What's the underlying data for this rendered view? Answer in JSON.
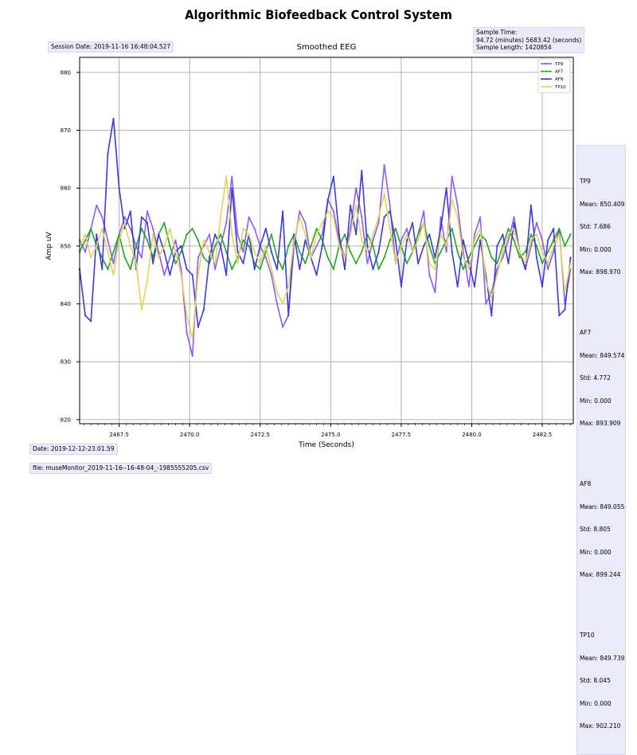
{
  "header": {
    "title": "Algorithmic Biofeedback Control System",
    "session_date": "Session Date: 2019-11-16 16:48:04.527",
    "sample_time_line1": "Sample Time:",
    "sample_time_line2": "94.72 (minutes) 5683.42 (seconds)",
    "sample_length": "Sample Length: 1420854"
  },
  "footer": {
    "date": "Date: 2019-12-12-23.01.59",
    "file": "file: museMonitor_2019-11-16--16-48-04_-1985555205.csv"
  },
  "stats": [
    {
      "name": "TP9",
      "mean": "Mean: 850.409",
      "std": "Std: 7.686",
      "min": "Min: 0.000",
      "max": "Max: 898.970"
    },
    {
      "name": "AF7",
      "mean": "Mean: 849.574",
      "std": "Std: 4.772",
      "min": "Min: 0.000",
      "max": "Max: 893.909"
    },
    {
      "name": "AF8",
      "mean": "Mean: 849.055",
      "std": "Std: 8.805",
      "min": "Min: 0.000",
      "max": "Max: 899.244"
    },
    {
      "name": "TP10",
      "mean": "Mean: 849.739",
      "std": "Std: 8.045",
      "min": "Min: 0.000",
      "max": "Max: 902.210"
    }
  ],
  "chart_data": {
    "type": "line",
    "title": "Smoothed EEG",
    "xlabel": "Time (Seconds)",
    "ylabel": "Amp uV",
    "xlim": [
      2466.1,
      2483.6
    ],
    "ylim": [
      819.3,
      882.6
    ],
    "x_ticks": [
      2467.5,
      2470.0,
      2472.5,
      2475.0,
      2477.5,
      2480.0,
      2482.5
    ],
    "x_tick_labels": [
      "2467.5",
      "2470.0",
      "2472.5",
      "2475.0",
      "2477.5",
      "2480.0",
      "2482.5"
    ],
    "y_ticks": [
      820,
      830,
      840,
      850,
      860,
      870,
      880
    ],
    "y_tick_labels": [
      "820",
      "830",
      "840",
      "850",
      "860",
      "870",
      "880"
    ],
    "grid": true,
    "legend_position": "top-right",
    "series": [
      {
        "name": "TP9",
        "color": "#8b5cf6",
        "x": [
          2466.1,
          2466.3,
          2466.5,
          2466.7,
          2466.9,
          2467.1,
          2467.3,
          2467.5,
          2467.7,
          2467.9,
          2468.1,
          2468.3,
          2468.5,
          2468.7,
          2468.9,
          2469.1,
          2469.3,
          2469.5,
          2469.7,
          2469.9,
          2470.1,
          2470.3,
          2470.5,
          2470.7,
          2470.9,
          2471.1,
          2471.3,
          2471.5,
          2471.7,
          2471.9,
          2472.1,
          2472.3,
          2472.5,
          2472.7,
          2472.9,
          2473.1,
          2473.3,
          2473.5,
          2473.7,
          2473.9,
          2474.1,
          2474.3,
          2474.5,
          2474.7,
          2474.9,
          2475.1,
          2475.3,
          2475.5,
          2475.7,
          2475.9,
          2476.1,
          2476.3,
          2476.5,
          2476.7,
          2476.9,
          2477.1,
          2477.3,
          2477.5,
          2477.7,
          2477.9,
          2478.1,
          2478.3,
          2478.5,
          2478.7,
          2478.9,
          2479.1,
          2479.3,
          2479.5,
          2479.7,
          2479.9,
          2480.1,
          2480.3,
          2480.5,
          2480.7,
          2480.9,
          2481.1,
          2481.3,
          2481.5,
          2481.7,
          2481.9,
          2482.1,
          2482.3,
          2482.5,
          2482.7,
          2482.9,
          2483.1,
          2483.3,
          2483.5
        ],
        "y": [
          851,
          849,
          853,
          857,
          855,
          851,
          847,
          852,
          855,
          853,
          850,
          848,
          856,
          853,
          849,
          845,
          848,
          851,
          846,
          835,
          831,
          848,
          850,
          852,
          846,
          850,
          854,
          862,
          852,
          849,
          855,
          853,
          850,
          848,
          845,
          840,
          836,
          838,
          850,
          856,
          854,
          848,
          850,
          852,
          858,
          856,
          851,
          848,
          853,
          860,
          855,
          847,
          851,
          854,
          864,
          857,
          847,
          851,
          853,
          849,
          852,
          856,
          845,
          842,
          855,
          849,
          862,
          857,
          849,
          843,
          852,
          855,
          840,
          842,
          846,
          848,
          851,
          855,
          849,
          846,
          850,
          854,
          851,
          846,
          849,
          853,
          840,
          846
        ]
      },
      {
        "name": "AF7",
        "color": "#22a722",
        "x": [
          2466.1,
          2466.3,
          2466.5,
          2466.7,
          2466.9,
          2467.1,
          2467.3,
          2467.5,
          2467.7,
          2467.9,
          2468.1,
          2468.3,
          2468.5,
          2468.7,
          2468.9,
          2469.1,
          2469.3,
          2469.5,
          2469.7,
          2469.9,
          2470.1,
          2470.3,
          2470.5,
          2470.7,
          2470.9,
          2471.1,
          2471.3,
          2471.5,
          2471.7,
          2471.9,
          2472.1,
          2472.3,
          2472.5,
          2472.7,
          2472.9,
          2473.1,
          2473.3,
          2473.5,
          2473.7,
          2473.9,
          2474.1,
          2474.3,
          2474.5,
          2474.7,
          2474.9,
          2475.1,
          2475.3,
          2475.5,
          2475.7,
          2475.9,
          2476.1,
          2476.3,
          2476.5,
          2476.7,
          2476.9,
          2477.1,
          2477.3,
          2477.5,
          2477.7,
          2477.9,
          2478.1,
          2478.3,
          2478.5,
          2478.7,
          2478.9,
          2479.1,
          2479.3,
          2479.5,
          2479.7,
          2479.9,
          2480.1,
          2480.3,
          2480.5,
          2480.7,
          2480.9,
          2481.1,
          2481.3,
          2481.5,
          2481.7,
          2481.9,
          2482.1,
          2482.3,
          2482.5,
          2482.7,
          2482.9,
          2483.1,
          2483.3,
          2483.5
        ],
        "y": [
          849,
          851,
          853,
          850,
          848,
          846,
          849,
          852,
          848,
          846,
          850,
          853,
          851,
          848,
          852,
          854,
          850,
          847,
          849,
          852,
          853,
          851,
          848,
          847,
          850,
          852,
          849,
          846,
          848,
          851,
          850,
          847,
          846,
          849,
          852,
          848,
          846,
          850,
          852,
          849,
          847,
          850,
          853,
          851,
          848,
          846,
          850,
          852,
          849,
          847,
          849,
          852,
          850,
          846,
          848,
          851,
          853,
          850,
          847,
          849,
          852,
          854,
          850,
          847,
          849,
          851,
          853,
          849,
          846,
          848,
          850,
          852,
          851,
          848,
          847,
          850,
          853,
          851,
          848,
          849,
          852,
          850,
          847,
          849,
          851,
          853,
          850,
          852
        ]
      },
      {
        "name": "AF8",
        "color": "#3b3bd6",
        "x": [
          2466.1,
          2466.3,
          2466.5,
          2466.7,
          2466.9,
          2467.1,
          2467.3,
          2467.5,
          2467.7,
          2467.9,
          2468.1,
          2468.3,
          2468.5,
          2468.7,
          2468.9,
          2469.1,
          2469.3,
          2469.5,
          2469.7,
          2469.9,
          2470.1,
          2470.3,
          2470.5,
          2470.7,
          2470.9,
          2471.1,
          2471.3,
          2471.5,
          2471.7,
          2471.9,
          2472.1,
          2472.3,
          2472.5,
          2472.7,
          2472.9,
          2473.1,
          2473.3,
          2473.5,
          2473.7,
          2473.9,
          2474.1,
          2474.3,
          2474.5,
          2474.7,
          2474.9,
          2475.1,
          2475.3,
          2475.5,
          2475.7,
          2475.9,
          2476.1,
          2476.3,
          2476.5,
          2476.7,
          2476.9,
          2477.1,
          2477.3,
          2477.5,
          2477.7,
          2477.9,
          2478.1,
          2478.3,
          2478.5,
          2478.7,
          2478.9,
          2479.1,
          2479.3,
          2479.5,
          2479.7,
          2479.9,
          2480.1,
          2480.3,
          2480.5,
          2480.7,
          2480.9,
          2481.1,
          2481.3,
          2481.5,
          2481.7,
          2481.9,
          2482.1,
          2482.3,
          2482.5,
          2482.7,
          2482.9,
          2483.1,
          2483.3,
          2483.5
        ],
        "y": [
          846,
          838,
          837,
          852,
          846,
          866,
          872,
          860,
          853,
          856,
          846,
          855,
          854,
          847,
          852,
          849,
          845,
          849,
          850,
          846,
          845,
          836,
          839,
          848,
          852,
          850,
          845,
          860,
          849,
          847,
          852,
          846,
          850,
          853,
          849,
          846,
          856,
          838,
          852,
          846,
          851,
          848,
          845,
          850,
          858,
          862,
          852,
          846,
          857,
          852,
          863,
          850,
          846,
          849,
          855,
          856,
          851,
          843,
          851,
          854,
          847,
          850,
          852,
          848,
          853,
          860,
          849,
          843,
          851,
          847,
          843,
          851,
          845,
          838,
          850,
          852,
          847,
          854,
          849,
          846,
          857,
          848,
          843,
          851,
          853,
          838,
          839,
          848
        ]
      },
      {
        "name": "TP10",
        "color": "#e3d25c",
        "x": [
          2466.1,
          2466.3,
          2466.5,
          2466.7,
          2466.9,
          2467.1,
          2467.3,
          2467.5,
          2467.7,
          2467.9,
          2468.1,
          2468.3,
          2468.5,
          2468.7,
          2468.9,
          2469.1,
          2469.3,
          2469.5,
          2469.7,
          2469.9,
          2470.1,
          2470.3,
          2470.5,
          2470.7,
          2470.9,
          2471.1,
          2471.3,
          2471.5,
          2471.7,
          2471.9,
          2472.1,
          2472.3,
          2472.5,
          2472.7,
          2472.9,
          2473.1,
          2473.3,
          2473.5,
          2473.7,
          2473.9,
          2474.1,
          2474.3,
          2474.5,
          2474.7,
          2474.9,
          2475.1,
          2475.3,
          2475.5,
          2475.7,
          2475.9,
          2476.1,
          2476.3,
          2476.5,
          2476.7,
          2476.9,
          2477.1,
          2477.3,
          2477.5,
          2477.7,
          2477.9,
          2478.1,
          2478.3,
          2478.5,
          2478.7,
          2478.9,
          2479.1,
          2479.3,
          2479.5,
          2479.7,
          2479.9,
          2480.1,
          2480.3,
          2480.5,
          2480.7,
          2480.9,
          2481.1,
          2481.3,
          2481.5,
          2481.7,
          2481.9,
          2482.1,
          2482.3,
          2482.5,
          2482.7,
          2482.9,
          2483.1,
          2483.3,
          2483.5
        ],
        "y": [
          850,
          852,
          848,
          850,
          853,
          849,
          845,
          851,
          854,
          850,
          847,
          839,
          844,
          852,
          848,
          850,
          853,
          849,
          845,
          838,
          834,
          845,
          851,
          849,
          847,
          855,
          862,
          852,
          847,
          853,
          852,
          849,
          847,
          850,
          846,
          842,
          840,
          843,
          851,
          855,
          852,
          848,
          852,
          854,
          856,
          855,
          850,
          848,
          852,
          857,
          851,
          849,
          852,
          855,
          859,
          853,
          847,
          850,
          852,
          849,
          851,
          854,
          847,
          846,
          852,
          850,
          858,
          855,
          848,
          846,
          851,
          853,
          844,
          841,
          845,
          849,
          852,
          853,
          849,
          847,
          851,
          852,
          849,
          847,
          850,
          852,
          842,
          847
        ]
      }
    ]
  }
}
